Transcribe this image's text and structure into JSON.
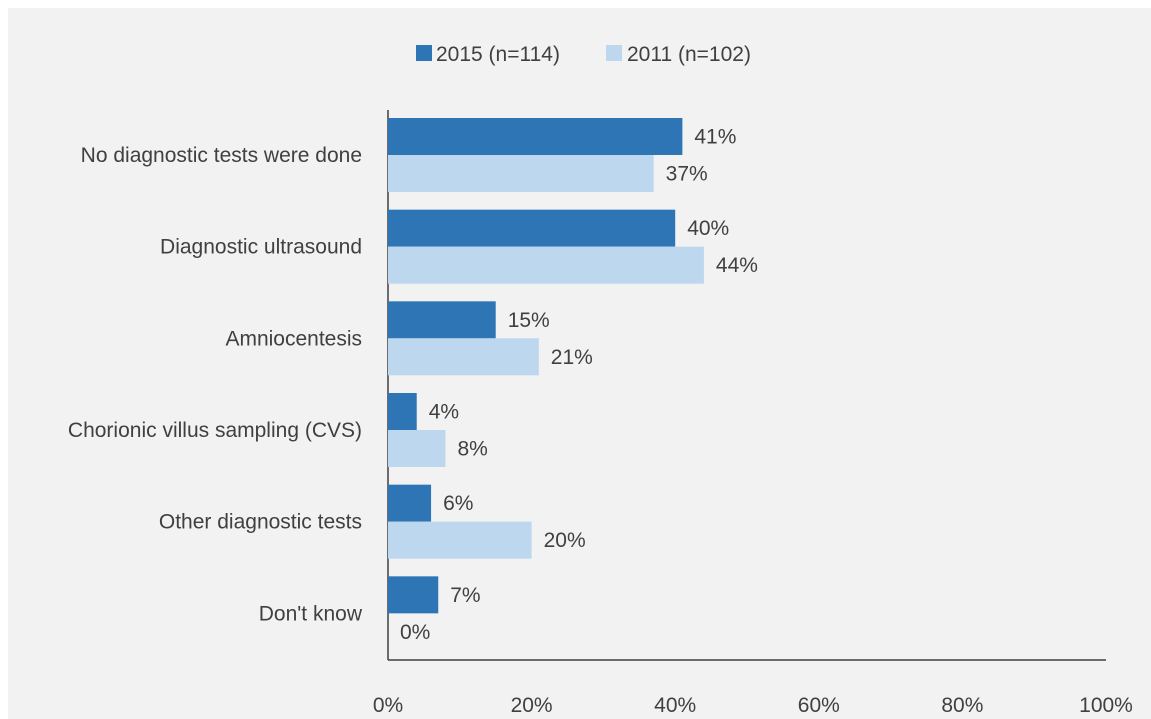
{
  "chart_data": {
    "type": "bar",
    "orientation": "horizontal",
    "title": "",
    "xlabel": "",
    "ylabel": "",
    "categories": [
      "No diagnostic tests were done",
      "Diagnostic ultrasound",
      "Amniocentesis",
      "Chorionic villus sampling (CVS)",
      "Other diagnostic tests",
      "Don't know"
    ],
    "series": [
      {
        "name": "2015 (n=114)",
        "color": "#2e75b6",
        "values": [
          41,
          40,
          15,
          4,
          6,
          7
        ],
        "labels": [
          "41%",
          "40%",
          "15%",
          "4%",
          "6%",
          "7%"
        ]
      },
      {
        "name": "2011 (n=102)",
        "color": "#bdd7ee",
        "values": [
          37,
          44,
          21,
          8,
          20,
          0
        ],
        "labels": [
          "37%",
          "44%",
          "21%",
          "8%",
          "20%",
          "0%"
        ]
      }
    ],
    "xlim": [
      0,
      100
    ],
    "xticks": [
      0,
      20,
      40,
      60,
      80,
      100
    ],
    "xtick_labels": [
      "0%",
      "20%",
      "40%",
      "60%",
      "80%",
      "100%"
    ],
    "grid": false,
    "legend": "top-center",
    "background": "#f2f2f2",
    "axis_color": "#404040"
  }
}
